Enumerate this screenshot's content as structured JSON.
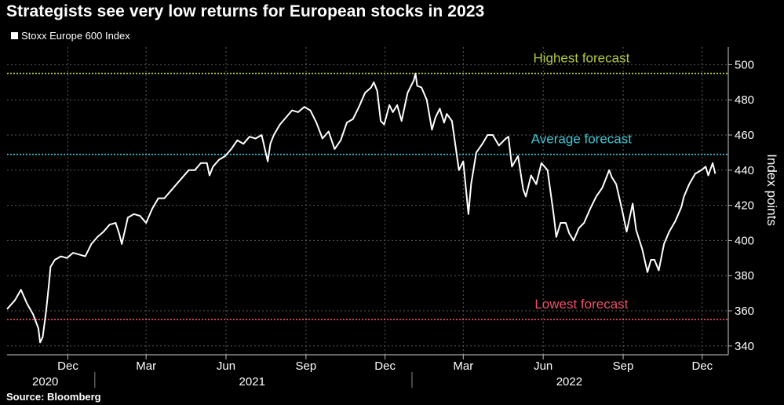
{
  "title": "Strategists see very low returns for European stocks in 2023",
  "source": "Source: Bloomberg",
  "chart_data": {
    "type": "line",
    "title": "Strategists see very low returns for European stocks in 2023",
    "legend": [
      {
        "name": "Stoxx Europe 600 Index",
        "color": "#ffffff"
      }
    ],
    "legend_position": "top-left",
    "ylabel": "Index points",
    "ylim": [
      335,
      510
    ],
    "yticks": [
      340,
      360,
      380,
      400,
      420,
      440,
      460,
      480,
      500
    ],
    "xlim": [
      "2020-09-22",
      "2022-12-31"
    ],
    "xticks": [
      {
        "date": "2020-12-01",
        "label": "Dec"
      },
      {
        "date": "2021-03-01",
        "label": "Mar"
      },
      {
        "date": "2021-06-01",
        "label": "Jun"
      },
      {
        "date": "2021-09-01",
        "label": "Sep"
      },
      {
        "date": "2021-12-01",
        "label": "Dec"
      },
      {
        "date": "2022-03-01",
        "label": "Mar"
      },
      {
        "date": "2022-06-01",
        "label": "Jun"
      },
      {
        "date": "2022-09-01",
        "label": "Sep"
      },
      {
        "date": "2022-12-01",
        "label": "Dec"
      }
    ],
    "year_labels": [
      {
        "date": "2020-11-05",
        "label": "2020"
      },
      {
        "date": "2021-07-01",
        "label": "2021"
      },
      {
        "date": "2022-07-01",
        "label": "2022"
      }
    ],
    "year_separators": [
      "2021-01-01",
      "2022-01-01"
    ],
    "grid": true,
    "reference_lines": [
      {
        "name": "Highest forecast",
        "value": 495,
        "color": "#b5c93a",
        "label_date": "2022-07-15"
      },
      {
        "name": "Average forecast",
        "value": 449,
        "color": "#3ec8d6",
        "label_date": "2022-07-15"
      },
      {
        "name": "Lowest forecast",
        "value": 355,
        "color": "#ee4f6a",
        "label_date": "2022-07-15"
      }
    ],
    "series": [
      {
        "name": "Stoxx Europe 600 Index",
        "color": "#ffffff",
        "points": [
          [
            "2020-09-22",
            361
          ],
          [
            "2020-10-01",
            366
          ],
          [
            "2020-10-08",
            372
          ],
          [
            "2020-10-15",
            364
          ],
          [
            "2020-10-22",
            358
          ],
          [
            "2020-10-28",
            350
          ],
          [
            "2020-10-30",
            342
          ],
          [
            "2020-11-02",
            345
          ],
          [
            "2020-11-06",
            360
          ],
          [
            "2020-11-09",
            374
          ],
          [
            "2020-11-11",
            385
          ],
          [
            "2020-11-16",
            389
          ],
          [
            "2020-11-23",
            391
          ],
          [
            "2020-11-30",
            390
          ],
          [
            "2020-12-07",
            393
          ],
          [
            "2020-12-14",
            392
          ],
          [
            "2020-12-21",
            391
          ],
          [
            "2020-12-28",
            398
          ],
          [
            "2021-01-04",
            402
          ],
          [
            "2021-01-11",
            405
          ],
          [
            "2021-01-18",
            409
          ],
          [
            "2021-01-25",
            410
          ],
          [
            "2021-01-29",
            404
          ],
          [
            "2021-02-01",
            398
          ],
          [
            "2021-02-08",
            413
          ],
          [
            "2021-02-15",
            415
          ],
          [
            "2021-02-22",
            414
          ],
          [
            "2021-03-01",
            410
          ],
          [
            "2021-03-08",
            418
          ],
          [
            "2021-03-15",
            424
          ],
          [
            "2021-03-22",
            424
          ],
          [
            "2021-03-29",
            428
          ],
          [
            "2021-04-05",
            432
          ],
          [
            "2021-04-12",
            436
          ],
          [
            "2021-04-19",
            440
          ],
          [
            "2021-04-26",
            440
          ],
          [
            "2021-05-03",
            444
          ],
          [
            "2021-05-10",
            444
          ],
          [
            "2021-05-13",
            437
          ],
          [
            "2021-05-17",
            442
          ],
          [
            "2021-05-24",
            446
          ],
          [
            "2021-05-31",
            448
          ],
          [
            "2021-06-07",
            452
          ],
          [
            "2021-06-14",
            457
          ],
          [
            "2021-06-21",
            455
          ],
          [
            "2021-06-28",
            459
          ],
          [
            "2021-07-05",
            458
          ],
          [
            "2021-07-12",
            460
          ],
          [
            "2021-07-19",
            445
          ],
          [
            "2021-07-22",
            455
          ],
          [
            "2021-07-26",
            460
          ],
          [
            "2021-08-02",
            466
          ],
          [
            "2021-08-09",
            470
          ],
          [
            "2021-08-16",
            474
          ],
          [
            "2021-08-23",
            473
          ],
          [
            "2021-08-30",
            476
          ],
          [
            "2021-09-06",
            474
          ],
          [
            "2021-09-13",
            467
          ],
          [
            "2021-09-20",
            458
          ],
          [
            "2021-09-27",
            462
          ],
          [
            "2021-10-04",
            452
          ],
          [
            "2021-10-11",
            457
          ],
          [
            "2021-10-18",
            467
          ],
          [
            "2021-10-25",
            469
          ],
          [
            "2021-11-01",
            476
          ],
          [
            "2021-11-08",
            484
          ],
          [
            "2021-11-15",
            487
          ],
          [
            "2021-11-18",
            490
          ],
          [
            "2021-11-22",
            485
          ],
          [
            "2021-11-26",
            468
          ],
          [
            "2021-11-30",
            466
          ],
          [
            "2021-12-06",
            477
          ],
          [
            "2021-12-10",
            473
          ],
          [
            "2021-12-15",
            477
          ],
          [
            "2021-12-20",
            468
          ],
          [
            "2021-12-27",
            484
          ],
          [
            "2022-01-03",
            491
          ],
          [
            "2022-01-05",
            495
          ],
          [
            "2022-01-07",
            488
          ],
          [
            "2022-01-12",
            487
          ],
          [
            "2022-01-18",
            480
          ],
          [
            "2022-01-24",
            463
          ],
          [
            "2022-01-28",
            470
          ],
          [
            "2022-02-02",
            475
          ],
          [
            "2022-02-07",
            467
          ],
          [
            "2022-02-10",
            472
          ],
          [
            "2022-02-16",
            468
          ],
          [
            "2022-02-24",
            440
          ],
          [
            "2022-03-01",
            445
          ],
          [
            "2022-03-07",
            415
          ],
          [
            "2022-03-10",
            432
          ],
          [
            "2022-03-16",
            450
          ],
          [
            "2022-03-23",
            455
          ],
          [
            "2022-03-29",
            460
          ],
          [
            "2022-04-04",
            460
          ],
          [
            "2022-04-11",
            454
          ],
          [
            "2022-04-19",
            458
          ],
          [
            "2022-04-22",
            459
          ],
          [
            "2022-04-26",
            442
          ],
          [
            "2022-05-03",
            448
          ],
          [
            "2022-05-09",
            429
          ],
          [
            "2022-05-12",
            425
          ],
          [
            "2022-05-18",
            437
          ],
          [
            "2022-05-24",
            432
          ],
          [
            "2022-05-30",
            444
          ],
          [
            "2022-06-06",
            440
          ],
          [
            "2022-06-13",
            415
          ],
          [
            "2022-06-16",
            402
          ],
          [
            "2022-06-21",
            410
          ],
          [
            "2022-06-27",
            410
          ],
          [
            "2022-07-01",
            404
          ],
          [
            "2022-07-06",
            400
          ],
          [
            "2022-07-12",
            407
          ],
          [
            "2022-07-18",
            410
          ],
          [
            "2022-07-25",
            418
          ],
          [
            "2022-08-01",
            425
          ],
          [
            "2022-08-08",
            430
          ],
          [
            "2022-08-16",
            440
          ],
          [
            "2022-08-19",
            436
          ],
          [
            "2022-08-24",
            432
          ],
          [
            "2022-08-31",
            417
          ],
          [
            "2022-09-05",
            405
          ],
          [
            "2022-09-12",
            421
          ],
          [
            "2022-09-16",
            406
          ],
          [
            "2022-09-23",
            395
          ],
          [
            "2022-09-29",
            382
          ],
          [
            "2022-10-03",
            389
          ],
          [
            "2022-10-07",
            389
          ],
          [
            "2022-10-12",
            383
          ],
          [
            "2022-10-18",
            398
          ],
          [
            "2022-10-24",
            405
          ],
          [
            "2022-10-31",
            411
          ],
          [
            "2022-11-07",
            419
          ],
          [
            "2022-11-10",
            425
          ],
          [
            "2022-11-16",
            432
          ],
          [
            "2022-11-23",
            438
          ],
          [
            "2022-11-30",
            440
          ],
          [
            "2022-12-05",
            442
          ],
          [
            "2022-12-08",
            437
          ],
          [
            "2022-12-13",
            444
          ],
          [
            "2022-12-16",
            438
          ]
        ]
      }
    ]
  }
}
